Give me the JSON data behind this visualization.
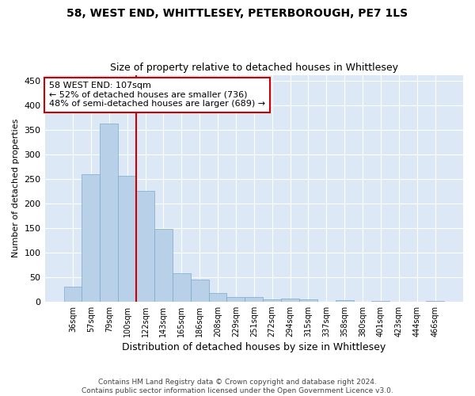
{
  "title1": "58, WEST END, WHITTLESEY, PETERBOROUGH, PE7 1LS",
  "title2": "Size of property relative to detached houses in Whittlesey",
  "xlabel": "Distribution of detached houses by size in Whittlesey",
  "ylabel": "Number of detached properties",
  "bar_labels": [
    "36sqm",
    "57sqm",
    "79sqm",
    "100sqm",
    "122sqm",
    "143sqm",
    "165sqm",
    "186sqm",
    "208sqm",
    "229sqm",
    "251sqm",
    "272sqm",
    "294sqm",
    "315sqm",
    "337sqm",
    "358sqm",
    "380sqm",
    "401sqm",
    "423sqm",
    "444sqm",
    "466sqm"
  ],
  "bar_values": [
    30,
    260,
    362,
    256,
    225,
    148,
    57,
    44,
    18,
    10,
    10,
    5,
    6,
    5,
    0,
    3,
    0,
    1,
    0,
    0,
    1
  ],
  "bar_color": "#b8d0e8",
  "bar_edge_color": "#7aaac8",
  "annotation_text": "58 WEST END: 107sqm\n← 52% of detached houses are smaller (736)\n48% of semi-detached houses are larger (689) →",
  "vline_x": 3.5,
  "vline_color": "#cc0000",
  "box_edge_color": "#cc0000",
  "bg_color": "#dce8f5",
  "grid_color": "#ffffff",
  "fig_bg_color": "#ffffff",
  "footer": "Contains HM Land Registry data © Crown copyright and database right 2024.\nContains public sector information licensed under the Open Government Licence v3.0.",
  "ylim": [
    0,
    462
  ],
  "yticks": [
    0,
    50,
    100,
    150,
    200,
    250,
    300,
    350,
    400,
    450
  ]
}
